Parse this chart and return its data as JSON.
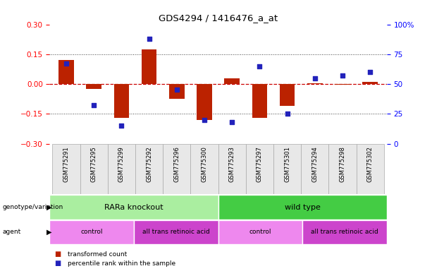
{
  "title": "GDS4294 / 1416476_a_at",
  "samples": [
    "GSM775291",
    "GSM775295",
    "GSM775299",
    "GSM775292",
    "GSM775296",
    "GSM775300",
    "GSM775293",
    "GSM775297",
    "GSM775301",
    "GSM775294",
    "GSM775298",
    "GSM775302"
  ],
  "bar_values": [
    0.12,
    -0.025,
    -0.17,
    0.175,
    -0.075,
    -0.18,
    0.03,
    -0.17,
    -0.11,
    0.005,
    -0.005,
    0.01
  ],
  "dot_values": [
    67,
    32,
    15,
    88,
    45,
    20,
    18,
    65,
    25,
    55,
    57,
    60
  ],
  "ylim_left": [
    -0.3,
    0.3
  ],
  "ylim_right": [
    0,
    100
  ],
  "yticks_left": [
    -0.3,
    -0.15,
    0.0,
    0.15,
    0.3
  ],
  "yticks_right": [
    0,
    25,
    50,
    75,
    100
  ],
  "bar_color": "#BB2200",
  "dot_color": "#2222BB",
  "zero_line_color": "#CC0000",
  "dotted_line_color": "#444444",
  "bg_color": "#FFFFFF",
  "plot_bg": "#FFFFFF",
  "genotype_groups": [
    {
      "label": "RARa knockout",
      "start": 0,
      "end": 6,
      "color": "#AAEEA0"
    },
    {
      "label": "wild type",
      "start": 6,
      "end": 12,
      "color": "#44CC44"
    }
  ],
  "agent_groups": [
    {
      "label": "control",
      "start": 0,
      "end": 3,
      "color": "#EE88EE"
    },
    {
      "label": "all trans retinoic acid",
      "start": 3,
      "end": 6,
      "color": "#CC44CC"
    },
    {
      "label": "control",
      "start": 6,
      "end": 9,
      "color": "#EE88EE"
    },
    {
      "label": "all trans retinoic acid",
      "start": 9,
      "end": 12,
      "color": "#CC44CC"
    }
  ],
  "legend_items": [
    {
      "label": "transformed count",
      "color": "#BB2200"
    },
    {
      "label": "percentile rank within the sample",
      "color": "#2222BB"
    }
  ],
  "bar_width": 0.55
}
